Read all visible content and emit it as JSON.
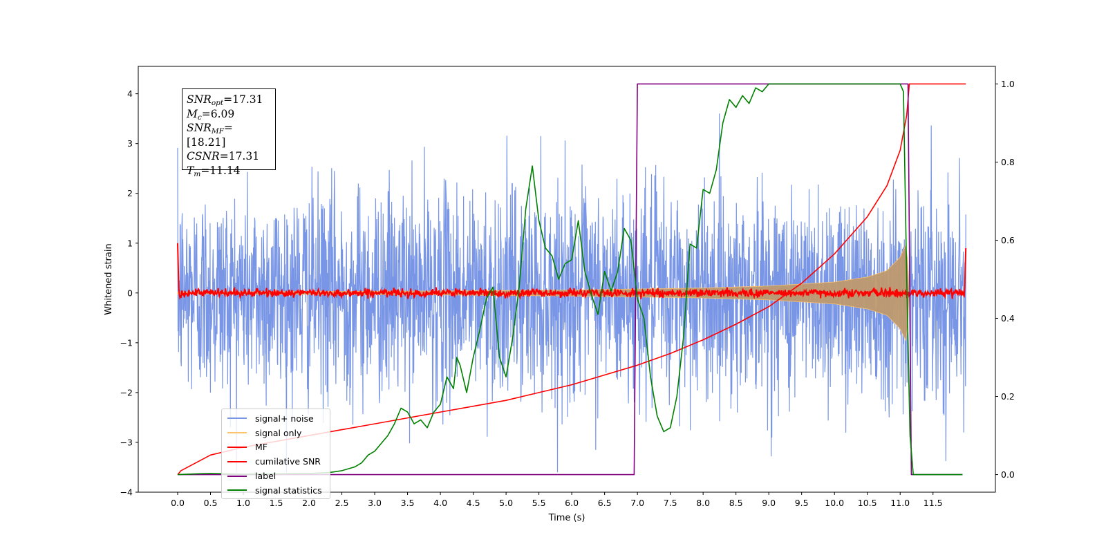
{
  "info_box": {
    "snr_opt": {
      "base": "SNR",
      "sub": "opt",
      "value": "=17.31"
    },
    "mc": {
      "base": "M",
      "sub": "c",
      "value": "=6.09"
    },
    "snr_mf": {
      "base": "SNR",
      "sub": "MF",
      "value": "=[18.21]"
    },
    "csnr": {
      "base": "CSNR",
      "value": "=17.31"
    },
    "tm": {
      "base": "T",
      "sub": "m",
      "value": "=11.14"
    }
  },
  "colors": {
    "signal_noise": "#7895e6",
    "signal_only": "#ffc46b",
    "signal_fill": "#bf9a6e",
    "mf": "#ff0000",
    "cumulative_snr": "#ff0000",
    "label": "#800080",
    "signal_statistics": "#008000"
  },
  "chart_data": {
    "type": "line",
    "xlabel": "Time (s)",
    "ylabel_left": "Whitened strain",
    "ylabel_right": "",
    "xlim": [
      -0.6,
      12.45
    ],
    "ylim_left": [
      -4.0,
      4.55
    ],
    "ylim_right": [
      -0.045,
      1.045
    ],
    "x_ticks": [
      "0.0",
      "0.5",
      "1.0",
      "1.5",
      "2.0",
      "2.5",
      "3.0",
      "3.5",
      "4.0",
      "4.5",
      "5.0",
      "5.5",
      "6.0",
      "6.5",
      "7.0",
      "7.5",
      "8.0",
      "8.5",
      "9.0",
      "9.5",
      "10.0",
      "10.5",
      "11.0",
      "11.5"
    ],
    "y_ticks_left": [
      "−4",
      "−3",
      "−2",
      "−1",
      "0",
      "1",
      "2",
      "3",
      "4"
    ],
    "y_ticks_right": [
      "0.0",
      "0.2",
      "0.4",
      "0.6",
      "0.8",
      "1.0"
    ],
    "legend": {
      "position": "lower left",
      "entries": [
        "signal+ noise",
        "signal only",
        "MF",
        "cumilative SNR",
        "label",
        "signal statistics"
      ]
    },
    "series": [
      {
        "name": "signal+ noise",
        "axis": "left",
        "description_values": {
          "x_range": [
            0.0,
            12.0
          ],
          "amplitude_range": [
            -3.6,
            4.2
          ]
        }
      },
      {
        "name": "signal only",
        "axis": "left",
        "envelope": {
          "x": [
            0.0,
            2.0,
            4.0,
            6.0,
            8.0,
            9.0,
            10.0,
            10.5,
            10.8,
            11.0,
            11.1,
            11.14
          ],
          "amp": [
            0.02,
            0.03,
            0.04,
            0.06,
            0.1,
            0.14,
            0.22,
            0.32,
            0.45,
            0.72,
            1.0,
            0.0
          ]
        }
      },
      {
        "name": "MF",
        "axis": "left",
        "noise_std": 0.04,
        "x_range": [
          0.0,
          12.0
        ]
      },
      {
        "name": "cumilative SNR",
        "axis": "right",
        "x": [
          0.0,
          0.05,
          0.5,
          1.0,
          1.5,
          2.0,
          2.5,
          3.0,
          3.5,
          4.0,
          4.5,
          5.0,
          5.5,
          6.0,
          6.5,
          7.0,
          7.5,
          8.0,
          8.5,
          9.0,
          9.5,
          10.0,
          10.5,
          10.8,
          11.0,
          11.1,
          11.14,
          12.0
        ],
        "values": [
          0.0,
          0.01,
          0.05,
          0.07,
          0.085,
          0.1,
          0.115,
          0.13,
          0.145,
          0.16,
          0.175,
          0.19,
          0.21,
          0.23,
          0.255,
          0.28,
          0.31,
          0.345,
          0.385,
          0.43,
          0.49,
          0.565,
          0.66,
          0.74,
          0.83,
          0.92,
          1.0,
          1.0
        ]
      },
      {
        "name": "label",
        "axis": "right",
        "x": [
          0.0,
          6.95,
          7.0,
          11.12,
          11.17,
          11.95
        ],
        "values": [
          0.0,
          0.0,
          1.0,
          1.0,
          0.0,
          0.0
        ]
      },
      {
        "name": "signal statistics",
        "axis": "right",
        "x": [
          0.0,
          0.3,
          0.5,
          1.0,
          1.5,
          2.0,
          2.3,
          2.5,
          2.7,
          2.8,
          2.9,
          3.0,
          3.1,
          3.2,
          3.3,
          3.4,
          3.5,
          3.6,
          3.7,
          3.8,
          3.9,
          4.0,
          4.1,
          4.2,
          4.25,
          4.3,
          4.4,
          4.5,
          4.6,
          4.7,
          4.8,
          4.9,
          5.0,
          5.1,
          5.2,
          5.3,
          5.4,
          5.5,
          5.6,
          5.7,
          5.8,
          5.9,
          6.0,
          6.1,
          6.2,
          6.3,
          6.4,
          6.5,
          6.6,
          6.7,
          6.8,
          6.9,
          7.0,
          7.1,
          7.2,
          7.3,
          7.4,
          7.5,
          7.6,
          7.7,
          7.8,
          7.9,
          8.0,
          8.1,
          8.2,
          8.3,
          8.4,
          8.5,
          8.6,
          8.7,
          8.8,
          8.9,
          9.0,
          9.2,
          9.5,
          10.0,
          10.5,
          11.0,
          11.05,
          11.1,
          11.15,
          11.2,
          11.5,
          11.95
        ],
        "values": [
          0.0,
          0.002,
          0.003,
          0.001,
          0.002,
          0.003,
          0.005,
          0.01,
          0.02,
          0.03,
          0.05,
          0.06,
          0.08,
          0.1,
          0.13,
          0.17,
          0.16,
          0.13,
          0.14,
          0.12,
          0.16,
          0.18,
          0.25,
          0.22,
          0.3,
          0.28,
          0.21,
          0.3,
          0.37,
          0.45,
          0.48,
          0.3,
          0.25,
          0.35,
          0.48,
          0.68,
          0.79,
          0.65,
          0.58,
          0.56,
          0.5,
          0.54,
          0.55,
          0.65,
          0.52,
          0.46,
          0.41,
          0.52,
          0.47,
          0.52,
          0.63,
          0.6,
          0.45,
          0.4,
          0.25,
          0.15,
          0.11,
          0.12,
          0.2,
          0.35,
          0.59,
          0.58,
          0.73,
          0.72,
          0.78,
          0.9,
          0.96,
          0.94,
          0.97,
          0.95,
          0.99,
          0.98,
          1.0,
          1.0,
          1.0,
          1.0,
          1.0,
          1.0,
          0.98,
          0.5,
          0.1,
          0.0,
          0.0,
          0.0
        ]
      }
    ]
  }
}
